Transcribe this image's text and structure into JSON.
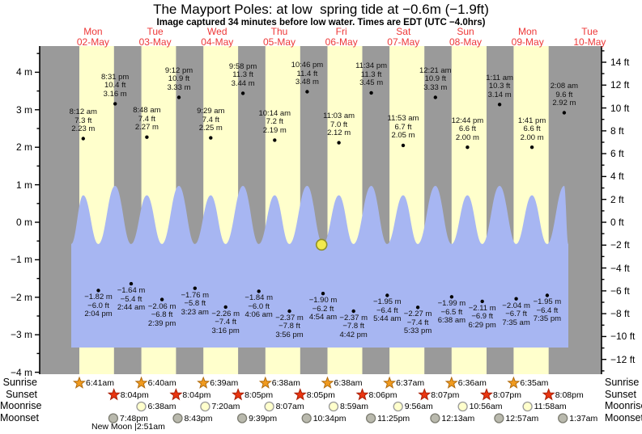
{
  "title": "The Mayport Poles: at low  spring tide at −0.6m (−1.9ft)",
  "subtitle": "Image captured 34 minutes before low water. Times are EDT (UTC −4.0hrs)",
  "colors": {
    "night_band": "#9a9a9a",
    "day_band": "#ffffcc",
    "water": "#a7b6f2",
    "day_label": "#ee3838",
    "axis": "#000000",
    "tide_dot": "#000000",
    "sunrise_star_fill": "#f09a1e",
    "sunrise_star_stroke": "#b06c10",
    "sunset_star_fill": "#ea3510",
    "sunset_star_stroke": "#a81e05",
    "moonrise_circle_fill": "#ffffcc",
    "moonrise_circle_stroke": "#999999",
    "moonset_circle_fill": "#b9b9ad",
    "moonset_circle_stroke": "#7d7d72",
    "marker_fill": "#f2ea4e",
    "marker_stroke": "#8f8f2a"
  },
  "chart_data": {
    "type": "area",
    "days": [
      {
        "name": "Mon",
        "date": "02-May"
      },
      {
        "name": "Tue",
        "date": "03-May"
      },
      {
        "name": "Wed",
        "date": "04-May"
      },
      {
        "name": "Thu",
        "date": "05-May"
      },
      {
        "name": "Fri",
        "date": "06-May"
      },
      {
        "name": "Sat",
        "date": "07-May"
      },
      {
        "name": "Sun",
        "date": "08-May"
      },
      {
        "name": "Mon",
        "date": "09-May"
      },
      {
        "name": "Tue",
        "date": "10-May"
      }
    ],
    "y_axis_left": {
      "unit": "m",
      "min": -4,
      "max": 4,
      "minor_step": 0.5,
      "ticks": [
        {
          "v": 4,
          "label": "4 m"
        },
        {
          "v": 3,
          "label": "3 m"
        },
        {
          "v": 2,
          "label": "2 m"
        },
        {
          "v": 1,
          "label": "1 m"
        },
        {
          "v": 0,
          "label": "0 m"
        },
        {
          "v": -1,
          "label": "−1 m"
        },
        {
          "v": -2,
          "label": "−2 m"
        },
        {
          "v": -3,
          "label": "−3 m"
        },
        {
          "v": -4,
          "label": "−4 m"
        }
      ]
    },
    "y_axis_right": {
      "unit": "ft",
      "minor_step": 1,
      "ticks": [
        {
          "v": 14,
          "label": "14 ft"
        },
        {
          "v": 12,
          "label": "12 ft"
        },
        {
          "v": 10,
          "label": "10 ft"
        },
        {
          "v": 8,
          "label": "8 ft"
        },
        {
          "v": 6,
          "label": "6 ft"
        },
        {
          "v": 4,
          "label": "4 ft"
        },
        {
          "v": 2,
          "label": "2 ft"
        },
        {
          "v": 0,
          "label": "0 ft"
        },
        {
          "v": -2,
          "label": "−2 ft"
        },
        {
          "v": -4,
          "label": "−4 ft"
        },
        {
          "v": -6,
          "label": "−6 ft"
        },
        {
          "v": -8,
          "label": "−8 ft"
        },
        {
          "v": -10,
          "label": "−10 ft"
        },
        {
          "v": -12,
          "label": "−12 ft"
        }
      ]
    },
    "tide_events": [
      {
        "day": 0,
        "t": 8.2,
        "kind": "high",
        "time": "8:12 am",
        "ft": "7.3 ft",
        "m": "2.23 m",
        "m_val": 2.23
      },
      {
        "day": 0,
        "t": 14.067,
        "kind": "low",
        "time": "2:04 pm",
        "ft": "−6.0 ft",
        "m": "−1.82 m",
        "m_val": -1.82
      },
      {
        "day": 0,
        "t": 20.517,
        "kind": "high",
        "time": "8:31 pm",
        "ft": "10.4 ft",
        "m": "3.16 m",
        "m_val": 3.16
      },
      {
        "day": 1,
        "t": 2.733,
        "kind": "low",
        "time": "2:44 am",
        "ft": "−5.4 ft",
        "m": "−1.64 m",
        "m_val": -1.64
      },
      {
        "day": 1,
        "t": 8.8,
        "kind": "high",
        "time": "8:48 am",
        "ft": "7.4 ft",
        "m": "2.27 m",
        "m_val": 2.27
      },
      {
        "day": 1,
        "t": 14.65,
        "kind": "low",
        "time": "2:39 pm",
        "ft": "−6.8 ft",
        "m": "−2.06 m",
        "m_val": -2.06
      },
      {
        "day": 1,
        "t": 21.2,
        "kind": "high",
        "time": "9:12 pm",
        "ft": "10.9 ft",
        "m": "3.33 m",
        "m_val": 3.33
      },
      {
        "day": 2,
        "t": 3.383,
        "kind": "low",
        "time": "3:23 am",
        "ft": "−5.8 ft",
        "m": "−1.76 m",
        "m_val": -1.76
      },
      {
        "day": 2,
        "t": 9.483,
        "kind": "high",
        "time": "9:29 am",
        "ft": "7.4 ft",
        "m": "2.25 m",
        "m_val": 2.25
      },
      {
        "day": 2,
        "t": 15.267,
        "kind": "low",
        "time": "3:16 pm",
        "ft": "−7.4 ft",
        "m": "−2.26 m",
        "m_val": -2.26
      },
      {
        "day": 2,
        "t": 21.967,
        "kind": "high",
        "time": "9:58 pm",
        "ft": "11.3 ft",
        "m": "3.44 m",
        "m_val": 3.44
      },
      {
        "day": 3,
        "t": 4.1,
        "kind": "low",
        "time": "4:06 am",
        "ft": "−6.0 ft",
        "m": "−1.84 m",
        "m_val": -1.84
      },
      {
        "day": 3,
        "t": 10.233,
        "kind": "high",
        "time": "10:14 am",
        "ft": "7.2 ft",
        "m": "2.19 m",
        "m_val": 2.19
      },
      {
        "day": 3,
        "t": 15.933,
        "kind": "low",
        "time": "3:56 pm",
        "ft": "−7.8 ft",
        "m": "−2.37 m",
        "m_val": -2.37
      },
      {
        "day": 3,
        "t": 22.767,
        "kind": "high",
        "time": "10:46 pm",
        "ft": "11.4 ft",
        "m": "3.48 m",
        "m_val": 3.48
      },
      {
        "day": 4,
        "t": 4.9,
        "kind": "low",
        "time": "4:54 am",
        "ft": "−6.2 ft",
        "m": "−1.90 m",
        "m_val": -1.9
      },
      {
        "day": 4,
        "t": 11.05,
        "kind": "high",
        "time": "11:03 am",
        "ft": "7.0 ft",
        "m": "2.12 m",
        "m_val": 2.12
      },
      {
        "day": 4,
        "t": 16.7,
        "kind": "low",
        "time": "4:42 pm",
        "ft": "−7.8 ft",
        "m": "−2.37 m",
        "m_val": -2.37
      },
      {
        "day": 4,
        "t": 23.567,
        "kind": "high",
        "time": "11:34 pm",
        "ft": "11.3 ft",
        "m": "3.45 m",
        "m_val": 3.45
      },
      {
        "day": 5,
        "t": 5.733,
        "kind": "low",
        "time": "5:44 am",
        "ft": "−6.4 ft",
        "m": "−1.95 m",
        "m_val": -1.95
      },
      {
        "day": 5,
        "t": 11.883,
        "kind": "high",
        "time": "11:53 am",
        "ft": "6.7 ft",
        "m": "2.05 m",
        "m_val": 2.05
      },
      {
        "day": 5,
        "t": 17.55,
        "kind": "low",
        "time": "5:33 pm",
        "ft": "−7.4 ft",
        "m": "−2.27 m",
        "m_val": -2.27
      },
      {
        "day": 6,
        "t": 0.35,
        "kind": "high",
        "time": "12:21 am",
        "ft": "10.9 ft",
        "m": "3.33 m",
        "m_val": 3.33
      },
      {
        "day": 6,
        "t": 6.633,
        "kind": "low",
        "time": "6:38 am",
        "ft": "−6.5 ft",
        "m": "−1.99 m",
        "m_val": -1.99
      },
      {
        "day": 6,
        "t": 12.733,
        "kind": "high",
        "time": "12:44 pm",
        "ft": "6.6 ft",
        "m": "2.00 m",
        "m_val": 2.0
      },
      {
        "day": 6,
        "t": 18.483,
        "kind": "low",
        "time": "6:29 pm",
        "ft": "−6.9 ft",
        "m": "−2.11 m",
        "m_val": -2.11
      },
      {
        "day": 7,
        "t": 1.183,
        "kind": "high",
        "time": "1:11 am",
        "ft": "10.3 ft",
        "m": "3.14 m",
        "m_val": 3.14
      },
      {
        "day": 7,
        "t": 7.583,
        "kind": "low",
        "time": "7:35 am",
        "ft": "−6.7 ft",
        "m": "−2.04 m",
        "m_val": -2.04
      },
      {
        "day": 7,
        "t": 13.683,
        "kind": "high",
        "time": "1:41 pm",
        "ft": "6.6 ft",
        "m": "2.00 m",
        "m_val": 2.0
      },
      {
        "day": 7,
        "t": 19.583,
        "kind": "low",
        "time": "7:35 pm",
        "ft": "−6.4 ft",
        "m": "−1.95 m",
        "m_val": -1.95
      },
      {
        "day": 8,
        "t": 2.133,
        "kind": "high",
        "time": "2:08 am",
        "ft": "9.6 ft",
        "m": "2.92 m",
        "m_val": 2.92
      }
    ],
    "current_marker": {
      "level_m": -0.6,
      "day": 4,
      "t": 4.33
    },
    "wave_style": {
      "peak_high_m": 0.97,
      "peak_low_m": 0.72,
      "trough_m": -0.58,
      "base_m": -3.34
    },
    "sun_moon": {
      "row_labels": {
        "sunrise": "Sunrise",
        "sunset": "Sunset",
        "moonrise": "Moonrise",
        "moonset": "Moonset"
      },
      "sunrise": [
        {
          "label": "6:41am",
          "day": 0,
          "t": 6.683
        },
        {
          "label": "6:40am",
          "day": 1,
          "t": 6.667
        },
        {
          "label": "6:39am",
          "day": 2,
          "t": 6.65
        },
        {
          "label": "6:38am",
          "day": 3,
          "t": 6.633
        },
        {
          "label": "6:38am",
          "day": 4,
          "t": 6.633
        },
        {
          "label": "6:37am",
          "day": 5,
          "t": 6.617
        },
        {
          "label": "6:36am",
          "day": 6,
          "t": 6.6
        },
        {
          "label": "6:35am",
          "day": 7,
          "t": 6.583
        }
      ],
      "sunset": [
        {
          "label": "8:04pm",
          "day": 0,
          "t": 20.067
        },
        {
          "label": "8:04pm",
          "day": 1,
          "t": 20.067
        },
        {
          "label": "8:05pm",
          "day": 2,
          "t": 20.083
        },
        {
          "label": "8:05pm",
          "day": 3,
          "t": 20.083
        },
        {
          "label": "8:06pm",
          "day": 4,
          "t": 20.1
        },
        {
          "label": "8:07pm",
          "day": 5,
          "t": 20.117
        },
        {
          "label": "8:07pm",
          "day": 6,
          "t": 20.117
        },
        {
          "label": "8:08pm",
          "day": 7,
          "t": 20.133
        }
      ],
      "moonrise": [
        {
          "label": "6:38am",
          "day": 1,
          "t": 6.633
        },
        {
          "label": "7:20am",
          "day": 2,
          "t": 7.333
        },
        {
          "label": "8:07am",
          "day": 3,
          "t": 8.117
        },
        {
          "label": "8:59am",
          "day": 4,
          "t": 8.983
        },
        {
          "label": "9:56am",
          "day": 5,
          "t": 9.933
        },
        {
          "label": "10:56am",
          "day": 6,
          "t": 10.933
        },
        {
          "label": "11:58am",
          "day": 7,
          "t": 11.967
        }
      ],
      "moonset": [
        {
          "label": "7:48pm",
          "day": 0,
          "t": 19.8
        },
        {
          "label": "8:43pm",
          "day": 1,
          "t": 20.717
        },
        {
          "label": "9:39pm",
          "day": 2,
          "t": 21.65
        },
        {
          "label": "10:34pm",
          "day": 3,
          "t": 22.567
        },
        {
          "label": "11:25pm",
          "day": 4,
          "t": 23.417
        },
        {
          "label": "12:13am",
          "day": 6,
          "t": 0.217
        },
        {
          "label": "12:57am",
          "day": 7,
          "t": 0.95
        },
        {
          "label": "1:37am",
          "day": 8,
          "t": 1.617
        }
      ],
      "new_moon": "New Moon |2:51am"
    }
  }
}
